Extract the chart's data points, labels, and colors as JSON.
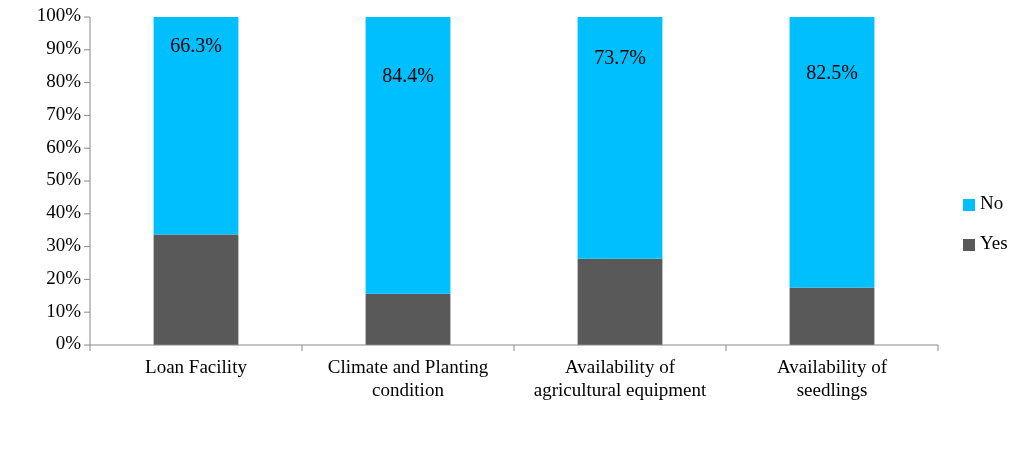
{
  "chart_data": {
    "type": "bar",
    "stacked": true,
    "categories": [
      "Loan Facility",
      "Climate and Planting condition",
      "Availability of agricultural equipment",
      "Availability of seedlings"
    ],
    "series": [
      {
        "name": "Yes",
        "color": "#595959",
        "values": [
          33.7,
          15.6,
          26.3,
          17.5
        ]
      },
      {
        "name": "No",
        "color": "#00bfff",
        "values": [
          66.3,
          84.4,
          73.7,
          82.5
        ],
        "value_labels": [
          "66.3%",
          "84.4%",
          "73.7%",
          "82.5%"
        ]
      }
    ],
    "ylim": [
      0,
      100
    ],
    "yticks": [
      {
        "value": 0,
        "label": "0%"
      },
      {
        "value": 10,
        "label": "10%"
      },
      {
        "value": 20,
        "label": "20%"
      },
      {
        "value": 30,
        "label": "30%"
      },
      {
        "value": 40,
        "label": "40%"
      },
      {
        "value": 50,
        "label": "50%"
      },
      {
        "value": 60,
        "label": "60%"
      },
      {
        "value": 70,
        "label": "70%"
      },
      {
        "value": 80,
        "label": "80%"
      },
      {
        "value": 90,
        "label": "90%"
      },
      {
        "value": 100,
        "label": "100%"
      }
    ],
    "grid": false,
    "legend": "right"
  }
}
